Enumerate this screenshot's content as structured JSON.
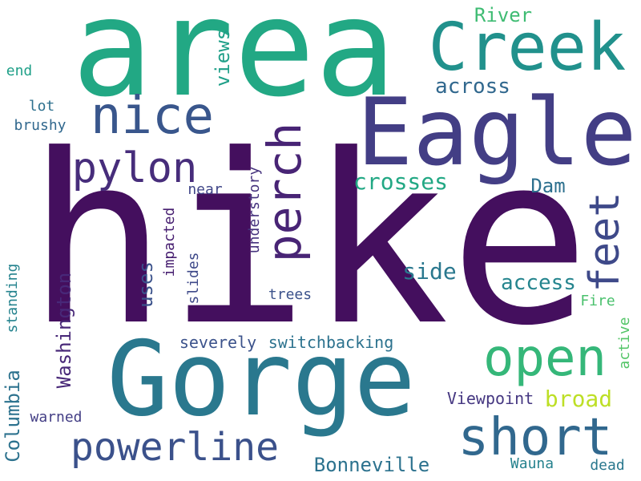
{
  "cloud": {
    "words": [
      {
        "text": "hike",
        "color": "#440f5e"
      },
      {
        "text": "area",
        "color": "#22a884"
      },
      {
        "text": "Gorge",
        "color": "#2a788e"
      },
      {
        "text": "Eagle",
        "color": "#433e85"
      },
      {
        "text": "Creek",
        "color": "#21918c"
      },
      {
        "text": "nice",
        "color": "#39568c"
      },
      {
        "text": "open",
        "color": "#35b779"
      },
      {
        "text": "short",
        "color": "#31688e"
      },
      {
        "text": "powerline",
        "color": "#3b518b"
      },
      {
        "text": "pylon",
        "color": "#472d7b"
      },
      {
        "text": "perch",
        "color": "#482475"
      },
      {
        "text": "feet",
        "color": "#3e4989"
      },
      {
        "text": "Washington",
        "color": "#482878"
      },
      {
        "text": "Columbia",
        "color": "#2c728e"
      },
      {
        "text": "Bonneville",
        "color": "#2c728e"
      },
      {
        "text": "broad",
        "color": "#bddf26"
      },
      {
        "text": "crosses",
        "color": "#22a884"
      },
      {
        "text": "Dam",
        "color": "#2d708e"
      },
      {
        "text": "side",
        "color": "#2a788e"
      },
      {
        "text": "access",
        "color": "#25858e"
      },
      {
        "text": "across",
        "color": "#31688e"
      },
      {
        "text": "River",
        "color": "#3fbc73"
      },
      {
        "text": "views",
        "color": "#1f9f88"
      },
      {
        "text": "uses",
        "color": "#3b528b"
      },
      {
        "text": "switchbacking",
        "color": "#2c728e"
      },
      {
        "text": "severely",
        "color": "#3b528b"
      },
      {
        "text": "Viewpoint",
        "color": "#453781"
      },
      {
        "text": "understory",
        "color": "#46337e"
      },
      {
        "text": "impacted",
        "color": "#482071"
      },
      {
        "text": "slides",
        "color": "#3e4989"
      },
      {
        "text": "near",
        "color": "#404688"
      },
      {
        "text": "trees",
        "color": "#3b528b"
      },
      {
        "text": "Fire",
        "color": "#4ac16d"
      },
      {
        "text": "active",
        "color": "#54c568"
      },
      {
        "text": "standing",
        "color": "#25838e"
      },
      {
        "text": "warned",
        "color": "#433e85"
      },
      {
        "text": "Wauna",
        "color": "#26828e"
      },
      {
        "text": "dead",
        "color": "#2a788e"
      },
      {
        "text": "lot",
        "color": "#2d708e"
      },
      {
        "text": "brushy",
        "color": "#31688e"
      },
      {
        "text": "end",
        "color": "#1fa088"
      }
    ]
  }
}
